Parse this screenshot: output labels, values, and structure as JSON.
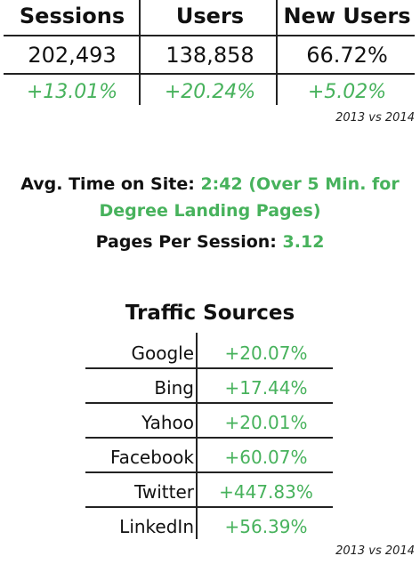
{
  "stats": {
    "headers": [
      "Sessions",
      "Users",
      "New Users"
    ],
    "values": [
      "202,493",
      "138,858",
      "66.72%"
    ],
    "changes": [
      "+13.01%",
      "+20.24%",
      "+5.02%"
    ],
    "note": "2013 vs 2014"
  },
  "metrics": {
    "avg_time_label": "Avg. Time on Site:",
    "avg_time_value": "2:42 (Over 5 Min. for",
    "avg_time_value_line2": "Degree Landing Pages)",
    "pages_label": "Pages Per Session:",
    "pages_value": "3.12"
  },
  "traffic": {
    "title": "Traffic Sources",
    "rows": [
      {
        "source": "Google",
        "change": "+20.07%"
      },
      {
        "source": "Bing",
        "change": "+17.44%"
      },
      {
        "source": "Yahoo",
        "change": "+20.01%"
      },
      {
        "source": "Facebook",
        "change": "+60.07%"
      },
      {
        "source": "Twitter",
        "change": "+447.83%"
      },
      {
        "source": "LinkedIn",
        "change": "+56.39%"
      }
    ],
    "note": "2013 vs 2014"
  },
  "colors": {
    "accent_green": "#47b25c",
    "text": "#111111",
    "background": "#ffffff"
  }
}
